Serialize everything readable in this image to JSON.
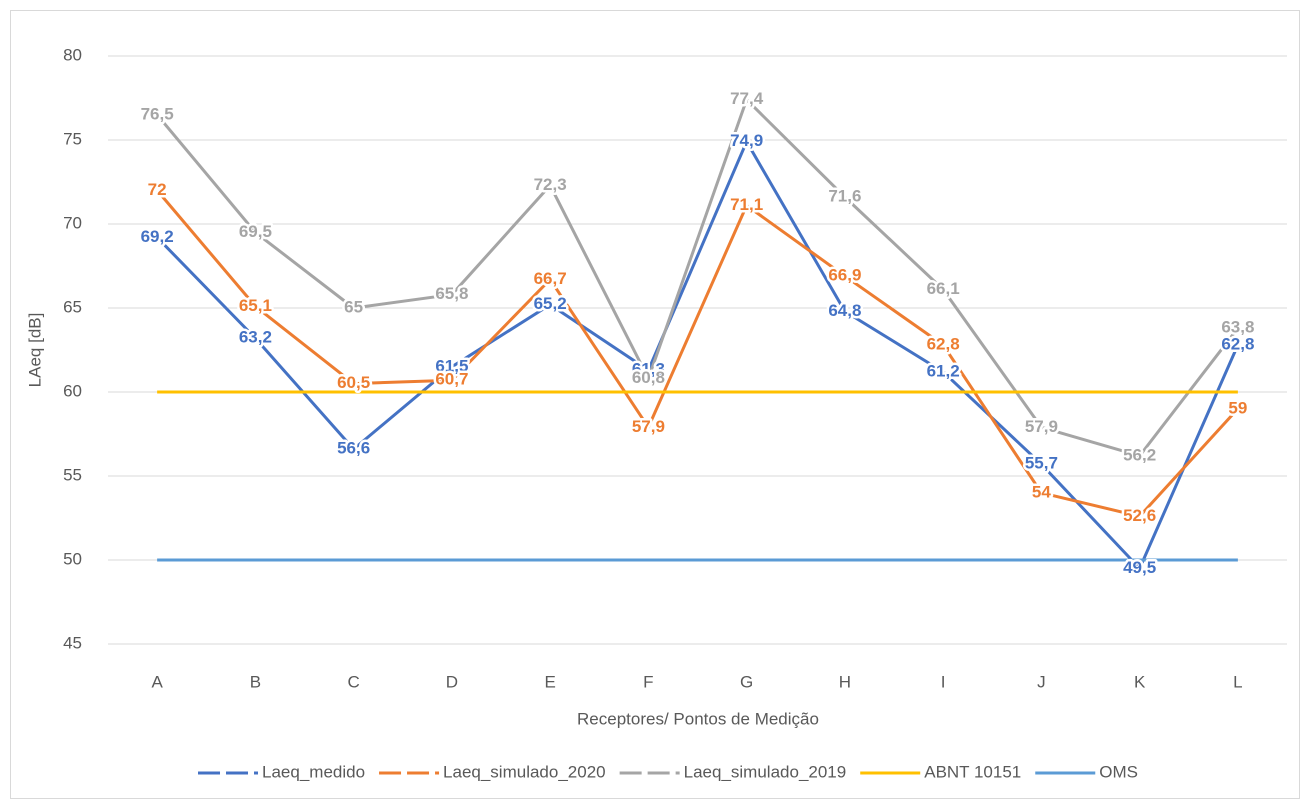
{
  "chart_data": {
    "type": "line",
    "x_label": "Receptores/ Pontos de Medição",
    "y_label": "LAeq [dB]",
    "categories": [
      "A",
      "B",
      "C",
      "D",
      "E",
      "F",
      "G",
      "H",
      "I",
      "J",
      "K",
      "L"
    ],
    "ylim": [
      45,
      80
    ],
    "yticks": [
      45,
      50,
      55,
      60,
      65,
      70,
      75,
      80
    ],
    "grid": true,
    "legend": "bottom",
    "series": [
      {
        "name": "Laeq_medido",
        "color": "#4472c4",
        "dash": true,
        "values": [
          69.2,
          63.2,
          56.6,
          61.5,
          65.2,
          61.3,
          74.9,
          64.8,
          61.2,
          55.7,
          49.5,
          62.8
        ],
        "value_labels": [
          "69,2",
          "63,2",
          "56,6",
          "61,5",
          "65,2",
          "61,3",
          "74,9",
          "64,8",
          "61,2",
          "55,7",
          "49,5",
          "62,8"
        ]
      },
      {
        "name": "Laeq_simulado_2020",
        "color": "#ed7d31",
        "dash": true,
        "values": [
          72,
          65.1,
          60.5,
          60.7,
          66.7,
          57.9,
          71.1,
          66.9,
          62.8,
          54,
          52.6,
          59
        ],
        "value_labels": [
          "72",
          "65,1",
          "60,5",
          "60,7",
          "66,7",
          "57,9",
          "71,1",
          "66,9",
          "62,8",
          "54",
          "52,6",
          "59"
        ]
      },
      {
        "name": "Laeq_simulado_2019",
        "color": "#a5a5a5",
        "dash": true,
        "values": [
          76.5,
          69.5,
          65,
          65.8,
          72.3,
          60.8,
          77.4,
          71.6,
          66.1,
          57.9,
          56.2,
          63.8
        ],
        "value_labels": [
          "76,5",
          "69,5",
          "65",
          "65,8",
          "72,3",
          "60,8",
          "77,4",
          "71,6",
          "66,1",
          "57,9",
          "56,2",
          "63,8"
        ]
      },
      {
        "name": "ABNT 10151",
        "color": "#ffc000",
        "dash": false,
        "values": [
          60,
          60,
          60,
          60,
          60,
          60,
          60,
          60,
          60,
          60,
          60,
          60
        ]
      },
      {
        "name": "OMS",
        "color": "#5b9bd5",
        "dash": false,
        "values": [
          50,
          50,
          50,
          50,
          50,
          50,
          50,
          50,
          50,
          50,
          50,
          50
        ]
      }
    ]
  }
}
